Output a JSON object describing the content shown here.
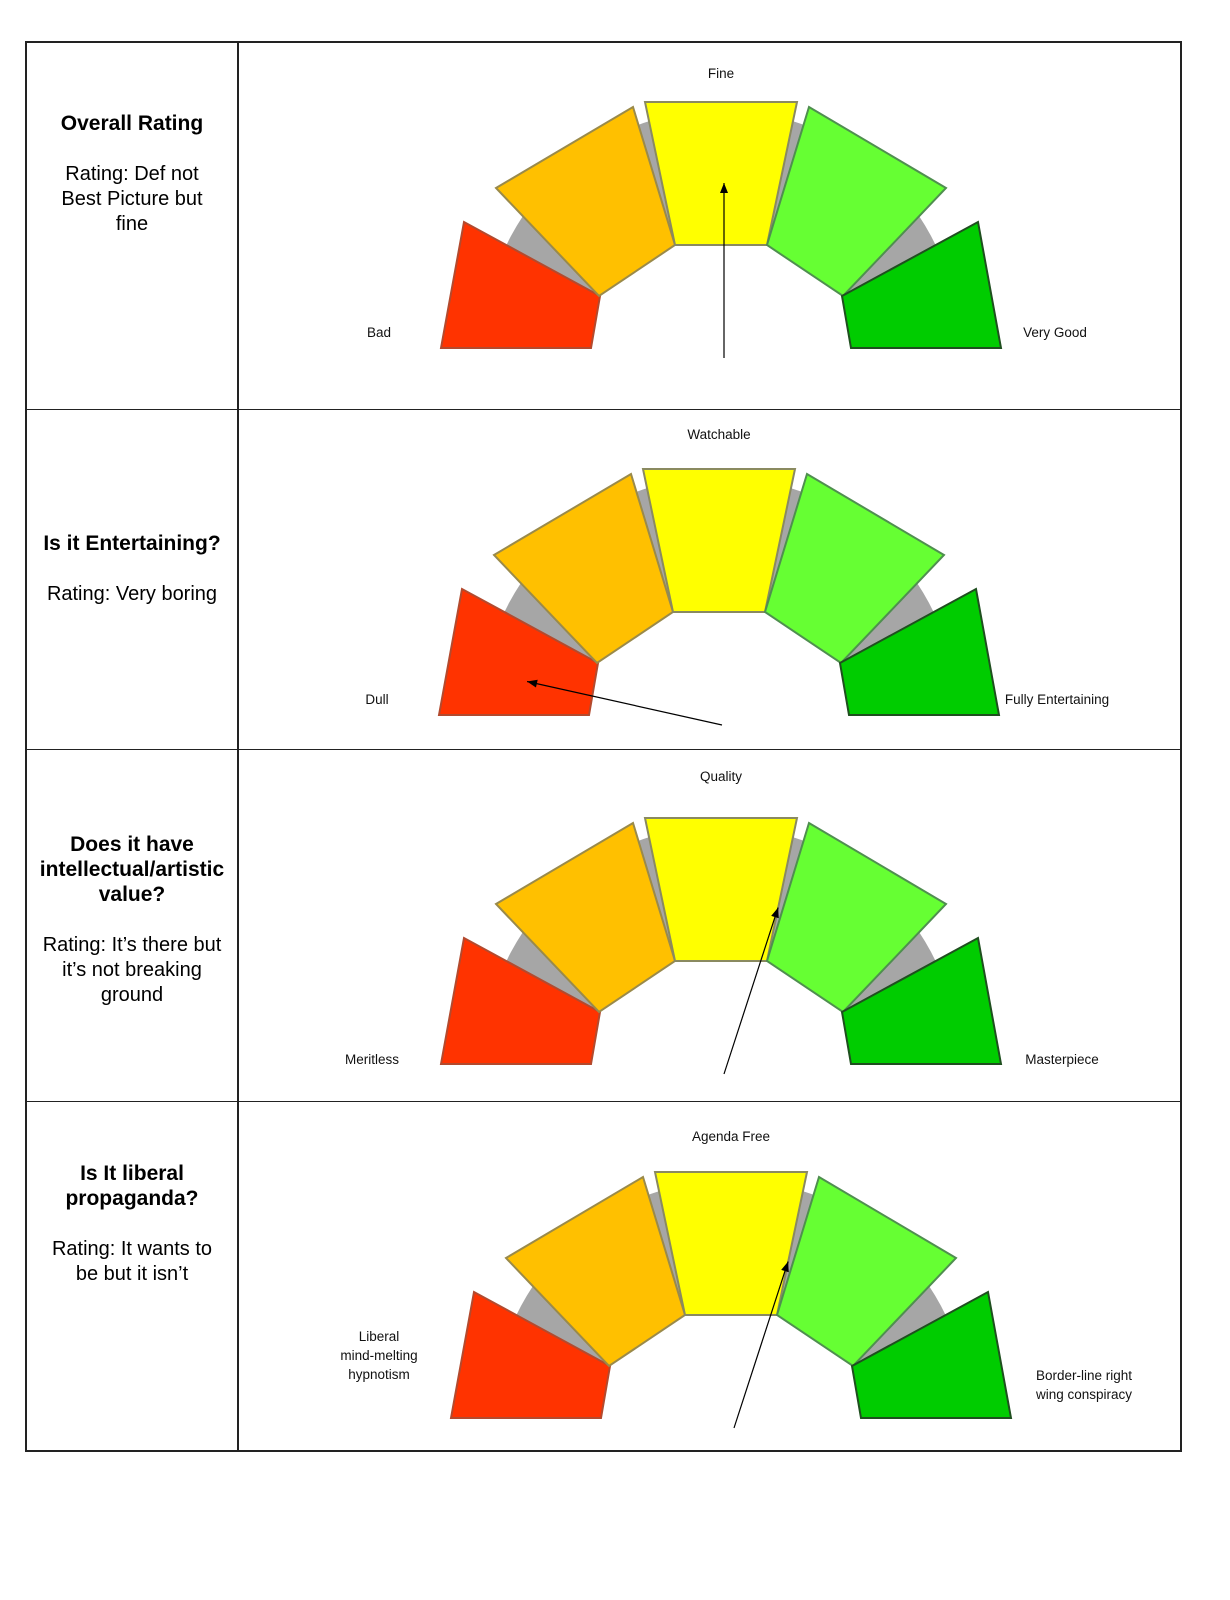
{
  "colors": {
    "red": "#ff3300",
    "orange": "#ffc000",
    "yellow": "#ffff00",
    "light_green": "#66ff33",
    "dark_green": "#00cc00",
    "ring": "#a6a6a6",
    "needle": "#000000"
  },
  "rows": [
    {
      "title": "Overall Rating",
      "rating": "Rating: Def not Best Picture but fine",
      "gauge": {
        "top_label": "Fine",
        "left_label": [
          "Bad"
        ],
        "right_label": [
          "Very Good"
        ],
        "needle_level": 0.5,
        "needle_segment": "yellow"
      }
    },
    {
      "title": "Is it Entertaining?",
      "rating": "Rating: Very boring",
      "gauge": {
        "top_label": "Watchable",
        "left_label": [
          "Dull"
        ],
        "right_label": [
          "Fully Entertaining"
        ],
        "needle_level": 0.08,
        "needle_segment": "red"
      }
    },
    {
      "title": "Does it have intellectual/artistic value?",
      "rating": "Rating:  It’s there but it’s not breaking ground",
      "gauge": {
        "top_label": "Quality",
        "left_label": [
          "Meritless"
        ],
        "right_label": [
          "Masterpiece"
        ],
        "needle_level": 0.6,
        "needle_segment": "yellow / light green boundary"
      }
    },
    {
      "title": "Is It liberal propaganda?",
      "rating": "Rating: It wants to be but it isn’t",
      "gauge": {
        "top_label": "Agenda Free",
        "left_label": [
          "Liberal",
          "mind-melting",
          "hypnotism"
        ],
        "right_label": [
          "Border-line right",
          "wing conspiracy"
        ],
        "needle_level": 0.6,
        "needle_segment": "yellow / light green boundary"
      }
    }
  ]
}
